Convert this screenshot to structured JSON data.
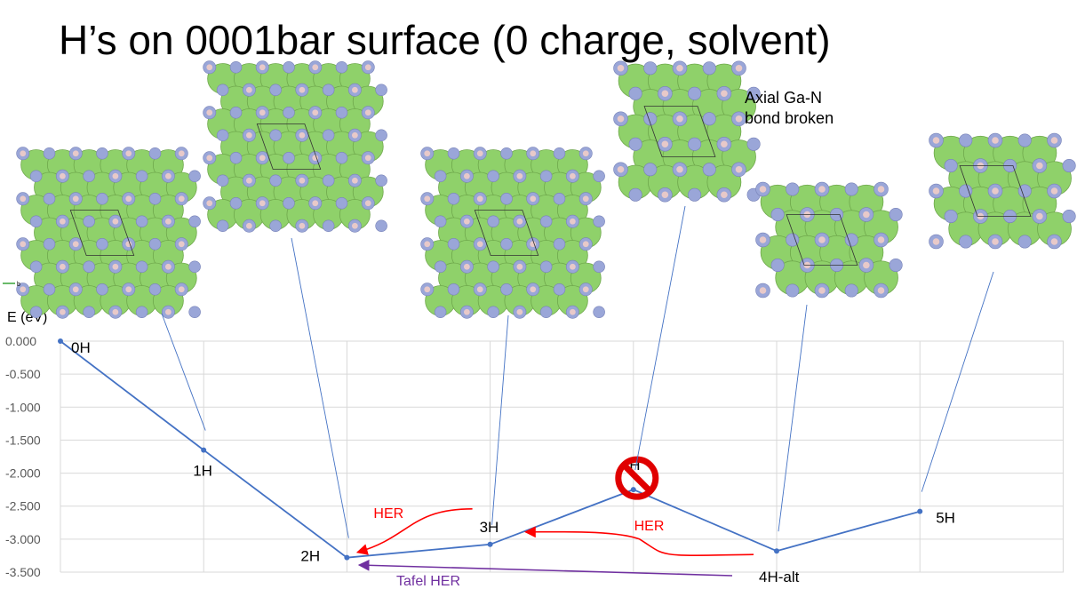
{
  "slide": {
    "title": "H’s on 0001bar surface (0 charge, solvent)",
    "structure_note": "Axial Ga-N\nbond broken",
    "small_axis_label": "b",
    "prohibited_marker": "no-symbol-icon"
  },
  "colors": {
    "series": "#4472C4",
    "grid": "#D9D9D9",
    "her_arrow": "#FF0000",
    "tafel_arrow": "#7030A0",
    "prohibited": "#E00000",
    "ga_atom": "#8FD16A",
    "n_atom": "#9AA6D8",
    "h_atom": "#E8C9C9"
  },
  "chart_data": {
    "type": "line",
    "ylabel": "E (eV)",
    "ylim": [
      -3.5,
      0.0
    ],
    "yticks": [
      "0.000",
      "-0.500",
      "-1.000",
      "-1.500",
      "-2.000",
      "-2.500",
      "-3.000",
      "-3.500"
    ],
    "grid": true,
    "series": [
      {
        "points": [
          {
            "label": "0H",
            "x": 0,
            "y": 0.0
          },
          {
            "label": "1H",
            "x": 1,
            "y": -1.65
          },
          {
            "label": "2H",
            "x": 2,
            "y": -3.28
          },
          {
            "label": "3H",
            "x": 3,
            "y": -3.08
          },
          {
            "label": "4H",
            "x": 4,
            "y": -2.25
          },
          {
            "label": "4H-alt",
            "x": 5,
            "y": -3.18
          },
          {
            "label": "5H",
            "x": 6,
            "y": -2.58
          }
        ]
      }
    ],
    "annotations": [
      {
        "text": "HER",
        "kind": "her",
        "from": "3H",
        "to": "2H"
      },
      {
        "text": "HER",
        "kind": "her",
        "from": "4H-alt",
        "to": "3H"
      },
      {
        "text": "Tafel HER",
        "kind": "tafel",
        "from": "4H-alt",
        "to": "2H"
      }
    ]
  }
}
